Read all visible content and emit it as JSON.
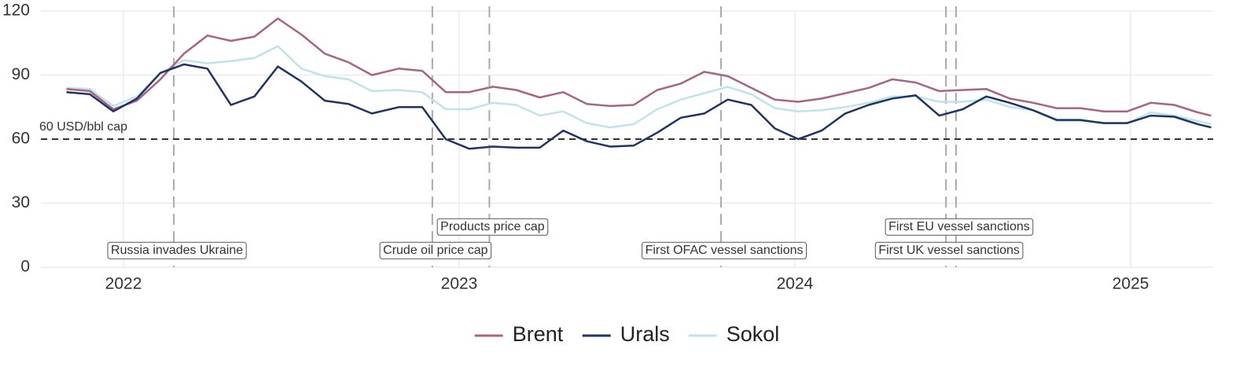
{
  "chart_data": {
    "type": "line",
    "x": [
      2021.83,
      2021.9,
      2021.97,
      2022.04,
      2022.11,
      2022.18,
      2022.25,
      2022.32,
      2022.39,
      2022.46,
      2022.53,
      2022.6,
      2022.67,
      2022.74,
      2022.82,
      2022.89,
      2022.96,
      2023.03,
      2023.1,
      2023.17,
      2023.24,
      2023.31,
      2023.38,
      2023.45,
      2023.52,
      2023.59,
      2023.66,
      2023.73,
      2023.8,
      2023.87,
      2023.94,
      2024.01,
      2024.08,
      2024.15,
      2024.22,
      2024.29,
      2024.36,
      2024.43,
      2024.5,
      2024.57,
      2024.64,
      2024.71,
      2024.78,
      2024.85,
      2024.92,
      2024.99,
      2025.06,
      2025.13,
      2025.2,
      2025.24
    ],
    "series": [
      {
        "name": "Brent",
        "color": "#a96480",
        "values": [
          83.5,
          82.5,
          74,
          78,
          88,
          100,
          108.5,
          106,
          108,
          116.5,
          109,
          100,
          96,
          90,
          93,
          92,
          82,
          82,
          84.5,
          83,
          79.5,
          82,
          76.5,
          75.5,
          76,
          83,
          86,
          91.5,
          89.5,
          84,
          78.5,
          77.5,
          79,
          81.5,
          84,
          88,
          86.5,
          82.5,
          83,
          83.5,
          79,
          77,
          74.5,
          74.5,
          73,
          73,
          77,
          76,
          72.5,
          71
        ]
      },
      {
        "name": "Urals",
        "color": "#1e3465",
        "values": [
          82,
          81,
          73,
          79,
          91,
          95,
          93,
          76,
          80,
          94,
          87,
          78,
          76.5,
          72,
          75,
          75,
          60,
          55.5,
          56.5,
          56,
          56,
          64,
          59,
          56.5,
          57,
          63,
          70,
          72,
          78.5,
          76,
          65,
          60,
          64,
          72,
          76,
          79,
          80.5,
          71,
          74,
          80,
          77,
          73.5,
          69,
          69,
          67.5,
          67.5,
          71,
          70.5,
          67,
          65.5
        ]
      },
      {
        "name": "Sokol",
        "color": "#bfe3ea",
        "values": [
          84,
          83.5,
          75.5,
          80,
          91,
          97,
          95.5,
          96.5,
          98,
          103.5,
          93,
          89.5,
          88,
          82.5,
          83,
          82,
          74,
          74,
          77,
          76,
          71,
          73,
          67.5,
          65.5,
          67,
          74,
          78.5,
          81.5,
          84.5,
          81,
          74.5,
          73,
          73.5,
          75,
          77,
          80,
          80,
          77.5,
          77.5,
          78.5,
          75,
          73.5,
          68.5,
          68.5,
          67.5,
          67.5,
          72.5,
          71,
          68.5,
          67
        ]
      }
    ],
    "xlim": [
      2021.754,
      2025.246
    ],
    "xticks": [
      2022,
      2023,
      2024,
      2025
    ],
    "ylim": [
      0,
      120
    ],
    "yticks": [
      0,
      30,
      60,
      90,
      120
    ],
    "grid": true,
    "hline": {
      "y": 60,
      "label": "60 USD/bbl cap"
    },
    "events": [
      {
        "x": 2022.15,
        "label": "Russia invades Ukraine"
      },
      {
        "x": 2022.92,
        "label": "Crude oil price cap"
      },
      {
        "x": 2023.09,
        "label": "Products price cap"
      },
      {
        "x": 2023.78,
        "label": "First OFAC vessel sanctions"
      },
      {
        "x": 2024.45,
        "label": "First UK vessel sanctions"
      },
      {
        "x": 2024.48,
        "label": "First EU vessel sanctions"
      }
    ],
    "legend": "bottom"
  }
}
